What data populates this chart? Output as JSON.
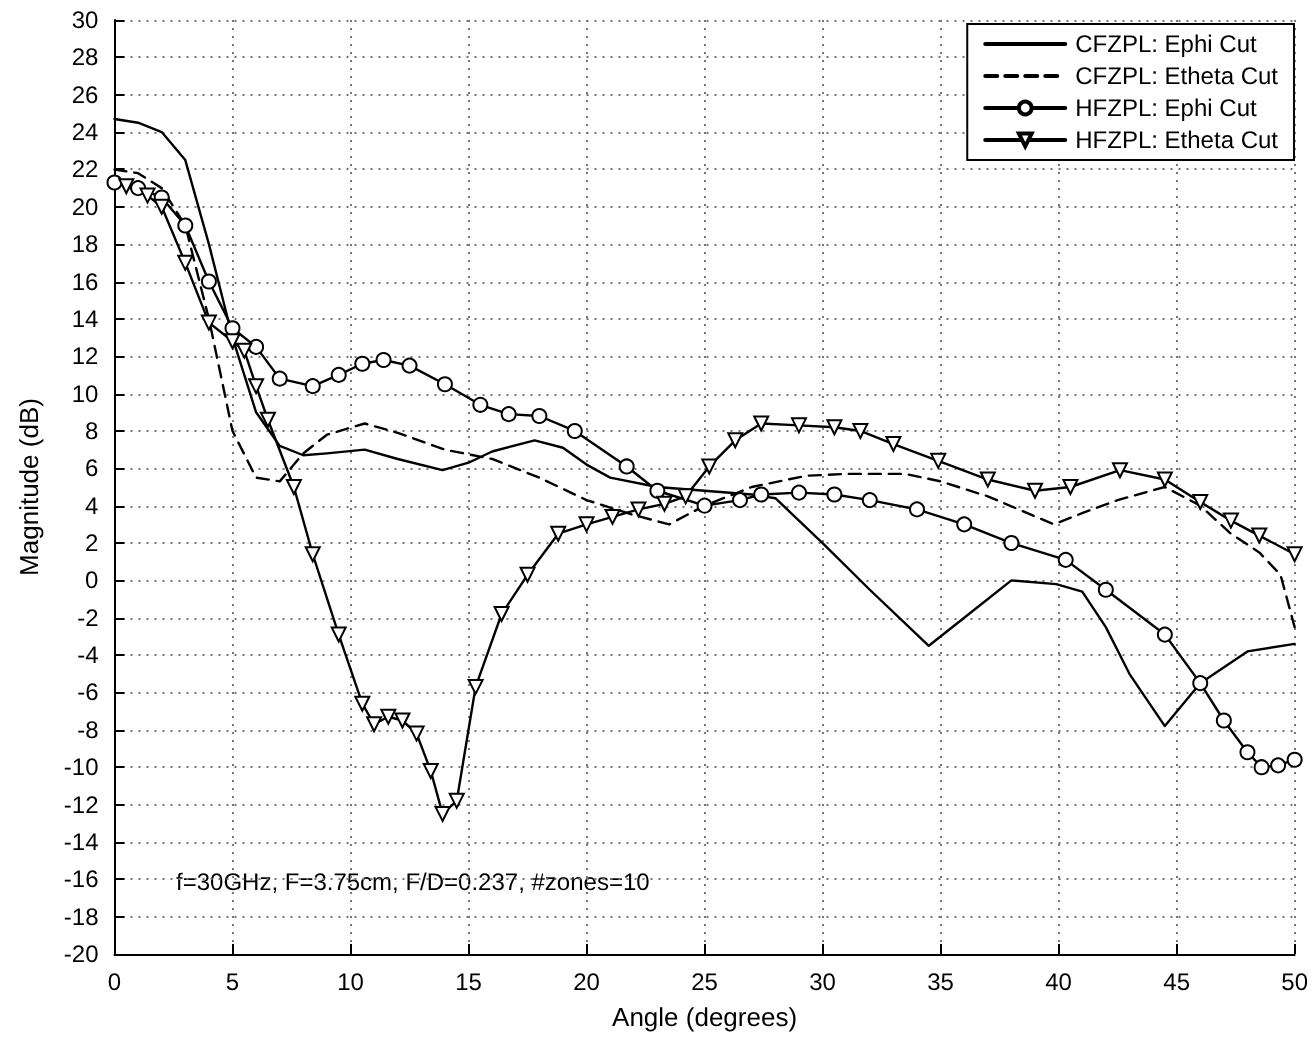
{
  "chart_data": {
    "type": "line",
    "xlabel": "Angle (degrees)",
    "ylabel": "Magnitude (dB)",
    "xlim": [
      0,
      50
    ],
    "xticks": [
      0,
      5,
      10,
      15,
      20,
      25,
      30,
      35,
      40,
      45,
      50
    ],
    "ylim": [
      -20,
      30
    ],
    "yticks": [
      -20,
      -18,
      -16,
      -14,
      -12,
      -10,
      -8,
      -6,
      -4,
      -2,
      0,
      2,
      4,
      6,
      8,
      10,
      12,
      14,
      16,
      18,
      20,
      22,
      24,
      26,
      28,
      30
    ],
    "grid": true,
    "legend": "top right",
    "annotations": [
      "f=30GHz, F=3.75cm, F/D=0.237, #zones=10"
    ],
    "series": [
      {
        "name": "CFZPL: Ephi Cut",
        "color": "#000000",
        "marker": "none",
        "line_style": "solid",
        "x": [
          0,
          1,
          2,
          3,
          4,
          5,
          6,
          7,
          8,
          9,
          10.6,
          12,
          13.9,
          15,
          16,
          17.8,
          19,
          20,
          21,
          23,
          25,
          27,
          28,
          30,
          32,
          34.5,
          36,
          38,
          39.9,
          41,
          42,
          43,
          44.5,
          46,
          48,
          50
        ],
        "values": [
          24.7,
          24.5,
          24,
          22.5,
          18,
          13,
          9,
          7.2,
          6.7,
          6.8,
          7.0,
          6.5,
          5.9,
          6.3,
          6.9,
          7.5,
          7.1,
          6.2,
          5.5,
          5.0,
          4.8,
          4.6,
          4.4,
          2.0,
          -0.5,
          -3.5,
          -2.0,
          0,
          -0.2,
          -0.6,
          -2.5,
          -5.0,
          -7.8,
          -5.5,
          -3.8,
          -3.4
        ]
      },
      {
        "name": "CFZPL: Etheta Cut",
        "color": "#000000",
        "marker": "none",
        "line_style": "dashed",
        "x": [
          0,
          1,
          2,
          3,
          4,
          5,
          6,
          7,
          8,
          9,
          10.6,
          12,
          14,
          16,
          18,
          20,
          22,
          23.5,
          25,
          27,
          29.3,
          31,
          33.5,
          35,
          37,
          39.8,
          41,
          42.5,
          44.5,
          46,
          47.3,
          48.5,
          49.4,
          50
        ],
        "values": [
          22,
          21.8,
          21,
          19,
          14,
          8,
          5.5,
          5.3,
          6.8,
          7.8,
          8.4,
          7.9,
          7.0,
          6.5,
          5.5,
          4.3,
          3.5,
          3.0,
          4.0,
          5.0,
          5.6,
          5.7,
          5.7,
          5.3,
          4.5,
          3.0,
          3.6,
          4.3,
          5.0,
          4.0,
          2.5,
          1.5,
          0.3,
          -2.5
        ]
      },
      {
        "name": "HFZPL: Ephi Cut",
        "color": "#000000",
        "marker": "circle",
        "line_style": "solid",
        "x": [
          0,
          1,
          2,
          3,
          4,
          5,
          6,
          7,
          8.4,
          9.5,
          10.5,
          11.4,
          12.5,
          14,
          15.5,
          16.7,
          18,
          19.5,
          21.7,
          23,
          25,
          26.5,
          27.4,
          29,
          30.5,
          32,
          34,
          36,
          38,
          40.3,
          42,
          44.5,
          46,
          47,
          48,
          48.6,
          49.3,
          50
        ],
        "values": [
          21.3,
          21,
          20.5,
          19,
          16,
          13.5,
          12.5,
          10.8,
          10.4,
          11.0,
          11.6,
          11.8,
          11.5,
          10.5,
          9.4,
          8.9,
          8.8,
          8.0,
          6.1,
          4.8,
          4.0,
          4.3,
          4.6,
          4.7,
          4.6,
          4.3,
          3.8,
          3.0,
          2.0,
          1.1,
          -0.5,
          -2.9,
          -5.5,
          -7.5,
          -9.2,
          -10,
          -9.9,
          -9.6
        ]
      },
      {
        "name": "HFZPL: Etheta Cut",
        "color": "#000000",
        "marker": "triangle",
        "line_style": "solid",
        "x": [
          0.5,
          1.4,
          2,
          3,
          4,
          5,
          5.5,
          6,
          6.5,
          7.6,
          8.4,
          9.5,
          10.5,
          11,
          11.6,
          12.2,
          12.8,
          13.4,
          13.9,
          14.5,
          15.3,
          16.4,
          17.5,
          18.8,
          20,
          21.1,
          22.2,
          23.3,
          24.2,
          25.2,
          26.3,
          27.4,
          29,
          30.5,
          31.6,
          33,
          34.9,
          37,
          39,
          40.5,
          42.6,
          44.5,
          46,
          47.3,
          48.5,
          50
        ],
        "values": [
          21.1,
          20.6,
          20,
          17,
          13.8,
          12.8,
          12.3,
          10.4,
          8.6,
          5.0,
          1.4,
          -2.9,
          -6.6,
          -7.7,
          -7.3,
          -7.5,
          -8.2,
          -10.2,
          -12.5,
          -11.8,
          -5.7,
          -1.8,
          0.3,
          2.5,
          3.0,
          3.4,
          3.8,
          4.1,
          4.5,
          6.1,
          7.5,
          8.4,
          8.3,
          8.2,
          8.0,
          7.3,
          6.4,
          5.4,
          4.8,
          5.0,
          5.9,
          5.4,
          4.2,
          3.2,
          2.4,
          1.4
        ]
      }
    ]
  }
}
